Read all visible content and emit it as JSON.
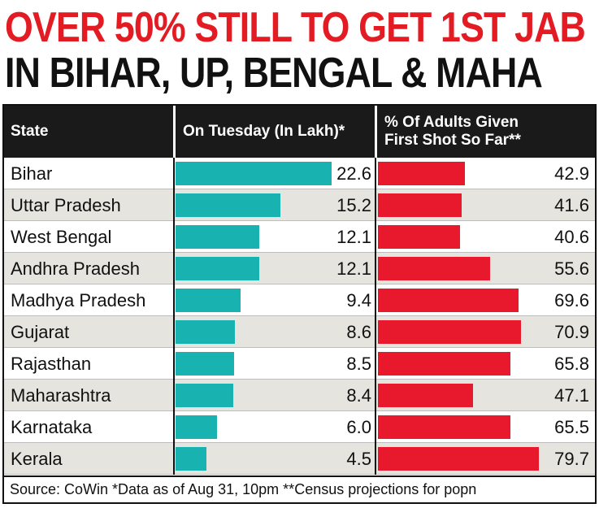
{
  "headline": {
    "line1": "OVER 50% STILL TO GET 1ST JAB",
    "line2": "IN BIHAR, UP, BENGAL & MAHA"
  },
  "colors": {
    "headline_red": "#e31b23",
    "teal_bar": "#18b2b0",
    "red_bar": "#e8192c",
    "header_bg": "#1a1a1a",
    "alt_row": "#e6e4de"
  },
  "source": "Source: CoWin *Data as of Aug 31, 10pm **Census projections for popn",
  "chart_data": {
    "type": "bar",
    "orientation": "horizontal",
    "columns": {
      "category": "State",
      "series1": "On Tuesday (In Lakh)*",
      "series2_line1": "% Of Adults Given",
      "series2_line2": "First Shot So Far**"
    },
    "categories": [
      "Bihar",
      "Uttar Pradesh",
      "West Bengal",
      "Andhra Pradesh",
      "Madhya Pradesh",
      "Gujarat",
      "Rajasthan",
      "Maharashtra",
      "Karnataka",
      "Kerala"
    ],
    "series": [
      {
        "values": [
          22.6,
          15.2,
          12.1,
          12.1,
          9.4,
          8.6,
          8.5,
          8.4,
          6.0,
          4.5
        ],
        "labels": [
          "22.6",
          "15.2",
          "12.1",
          "12.1",
          "9.4",
          "8.6",
          "8.5",
          "8.4",
          "6.0",
          "4.5"
        ],
        "xlim": [
          0,
          22.6
        ]
      },
      {
        "values": [
          42.9,
          41.6,
          40.6,
          55.6,
          69.6,
          70.9,
          65.8,
          47.1,
          65.5,
          79.7
        ],
        "labels": [
          "42.9",
          "41.6",
          "40.6",
          "55.6",
          "69.6",
          "70.9",
          "65.8",
          "47.1",
          "65.5",
          "79.7"
        ],
        "xlim": [
          0,
          79.7
        ]
      }
    ]
  }
}
